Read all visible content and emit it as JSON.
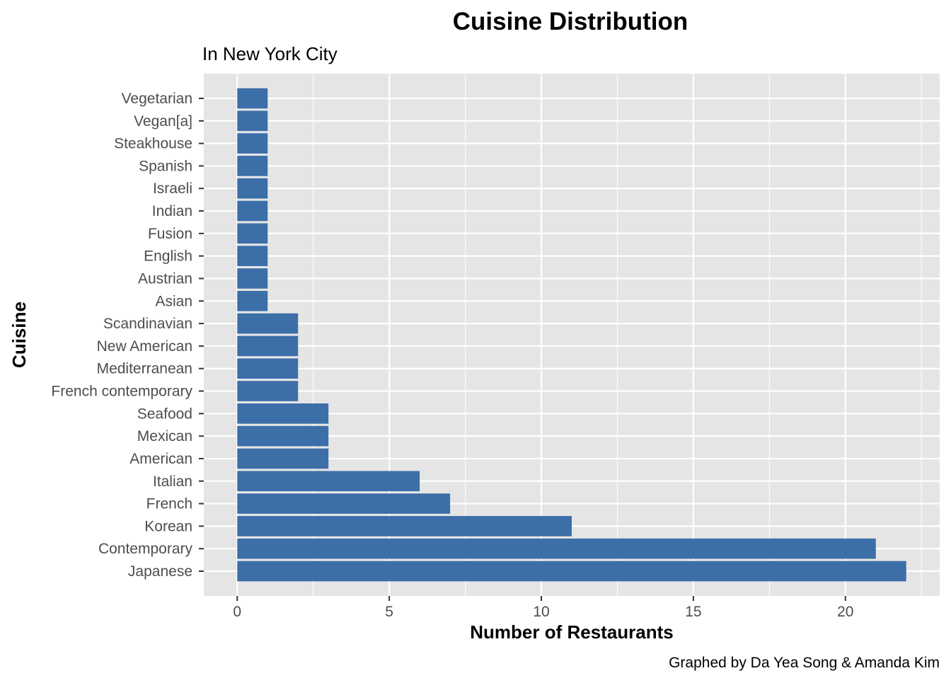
{
  "chart_data": {
    "type": "bar",
    "orientation": "horizontal",
    "title": "Cuisine Distribution",
    "subtitle": "In New York City",
    "xlabel": "Number of Restaurants",
    "ylabel": "Cuisine",
    "caption": "Graphed by Da Yea Song & Amanda Kim",
    "categories": [
      "Japanese",
      "Contemporary",
      "Korean",
      "French",
      "Italian",
      "American",
      "Mexican",
      "Seafood",
      "French contemporary",
      "Mediterranean",
      "New American",
      "Scandinavian",
      "Asian",
      "Austrian",
      "English",
      "Fusion",
      "Indian",
      "Israeli",
      "Spanish",
      "Steakhouse",
      "Vegan[a]",
      "Vegetarian"
    ],
    "values": [
      22,
      21,
      11,
      7,
      6,
      3,
      3,
      3,
      2,
      2,
      2,
      2,
      1,
      1,
      1,
      1,
      1,
      1,
      1,
      1,
      1,
      1
    ],
    "xlim": [
      -1.1,
      23.1
    ],
    "xticks": [
      0,
      5,
      10,
      15,
      20
    ],
    "x_minor_ticks": [
      2.5,
      7.5,
      12.5,
      17.5,
      22.5
    ],
    "grid": true,
    "legend": "none",
    "colors": {
      "bar": "#3C6EA8",
      "panel": "#E5E5E5",
      "grid": "#FFFFFF",
      "text": "#000000",
      "tick_text": "#4D4D4D",
      "tick_mark": "#333333"
    }
  }
}
